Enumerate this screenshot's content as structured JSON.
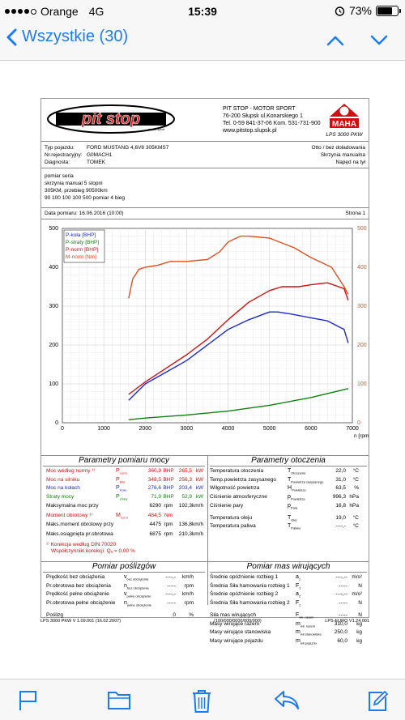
{
  "status": {
    "carrier": "Orange",
    "network": "4G",
    "time": "15:39",
    "battery": "73%",
    "battery_level": 0.73
  },
  "nav": {
    "back_label": "Wszystkie (30)"
  },
  "header": {
    "logo_text": "pit stop",
    "logo_sub": "motor sport",
    "company": [
      "PIT STOP - MOTOR SPORT",
      "76-200 Słupsk ul.Konarskiego 1",
      "Tel. 0-59 841-37-06 Kom. 531-731-900",
      "www.pitstop.slupsk.pl"
    ],
    "maha_text": "MAHA",
    "lps": "LPS 3000 PKW"
  },
  "vehicle": {
    "labels": [
      "Typ pojazdu:",
      "Nr.rejestracyjny:",
      "Diagnosta:"
    ],
    "values": [
      "FORD MUSTANG 4,6V8 305KMS7",
      "G0MACH1",
      "TOMEK"
    ],
    "right": [
      "Otto / bez doładowania",
      "Skrzynia manualna",
      "Napęd na tył"
    ]
  },
  "description": [
    "pomiar seria",
    "skrzynia manual 5 stopni",
    "305KM, przebieg 90500km",
    "90 100 100 100 500 pomiar 4 bieg"
  ],
  "date": {
    "label": "Data pomiaru: 16.06.2016 (10:00)",
    "page": "Strona 1"
  },
  "chart_data": {
    "type": "line",
    "xlabel": "n [rpm]",
    "xlim": [
      0,
      7000
    ],
    "x_ticks": [
      0,
      1000,
      2000,
      3000,
      4000,
      5000,
      6000,
      7000
    ],
    "left_ticks": [
      0,
      100,
      200,
      300,
      400,
      500
    ],
    "right_ticks": [
      0,
      100,
      200,
      300,
      400,
      500
    ],
    "ylim": [
      0,
      500
    ],
    "grid": true,
    "legend_position": "top-left",
    "series": [
      {
        "name": "P-koła [BHP]",
        "color": "#1a2ad0",
        "x": [
          1600,
          2000,
          2500,
          3000,
          3500,
          4000,
          4500,
          5000,
          5200,
          5500,
          6000,
          6400,
          6800,
          6900
        ],
        "y": [
          58,
          100,
          130,
          160,
          200,
          240,
          265,
          285,
          285,
          280,
          270,
          262,
          240,
          205
        ]
      },
      {
        "name": "P-straty [BHP]",
        "color": "#128012",
        "x": [
          1600,
          2000,
          3000,
          4000,
          5000,
          6000,
          6900
        ],
        "y": [
          8,
          12,
          20,
          30,
          45,
          65,
          88
        ]
      },
      {
        "name": "P-norm [BHP]",
        "color": "#d01010",
        "x": [
          1600,
          2000,
          2500,
          3000,
          3500,
          4000,
          4500,
          5000,
          5300,
          5700,
          6000,
          6400,
          6800,
          6900
        ],
        "y": [
          73,
          105,
          140,
          175,
          215,
          265,
          310,
          340,
          350,
          350,
          355,
          360,
          345,
          315
        ]
      },
      {
        "name": "M-norm [Nm]",
        "color": "#e05020",
        "x": [
          1600,
          1700,
          1850,
          2000,
          2300,
          2600,
          3000,
          3500,
          3800,
          4000,
          4300,
          4500,
          5000,
          5600,
          6000,
          6500,
          6800,
          6900
        ],
        "y": [
          320,
          370,
          395,
          400,
          405,
          415,
          415,
          420,
          440,
          465,
          480,
          480,
          475,
          450,
          425,
          400,
          350,
          330
        ]
      }
    ]
  },
  "params": {
    "title": "Parametry pomiaru mocy",
    "rows": [
      {
        "label": "Moc według normy ¹⁾",
        "sym": "Pnorm",
        "v1": "360,9",
        "u1": "BHP",
        "v2": "265,5",
        "u2": "kW",
        "color": "red"
      },
      {
        "label": "Moc na silniku",
        "sym": "PMot",
        "v1": "348,5",
        "u1": "BHP",
        "v2": "256,3",
        "u2": "kW",
        "color": "red"
      },
      {
        "label": "Moc na kołach",
        "sym": "PKoła",
        "v1": "276,6",
        "u1": "BHP",
        "v2": "203,4",
        "u2": "kW",
        "color": "blue"
      },
      {
        "label": "Straty mocy",
        "sym": "Pstraty",
        "v1": "71,9",
        "u1": "BHP",
        "v2": "52,9",
        "u2": "kW",
        "color": "green"
      },
      {
        "label": "Maksymalna moc przy",
        "sym": "",
        "v1": "6290",
        "u1": "rpm",
        "v2": "192,3",
        "u2": "km/h",
        "color": ""
      },
      {
        "label": "Moment obrotowy ¹⁾",
        "sym": "Mnorm",
        "v1": "484,5",
        "u1": "Nm",
        "v2": "",
        "u2": "",
        "color": "red"
      },
      {
        "label": "Maks.moment obrotowy przy",
        "sym": "",
        "v1": "4475",
        "u1": "rpm",
        "v2": "136,8",
        "u2": "km/h",
        "color": ""
      },
      {
        "label": "Maks.osiągnięta pr.obrotowa",
        "sym": "",
        "v1": "6875",
        "u1": "rpm",
        "v2": "210,3",
        "u2": "km/h",
        "color": ""
      }
    ],
    "note1": "¹⁾ Korekcja według DIN 70020",
    "note2": "Współczynniki korekcji: Qₐ =        0,00 %"
  },
  "env": {
    "title": "Parametry otoczenia",
    "rows": [
      {
        "label": "Temperatura otoczenia",
        "sym": "TOtoczenie",
        "v": "22,0",
        "u": "°C"
      },
      {
        "label": "Temp.powietrza zasysanego",
        "sym": "TPowietrza zasysanego",
        "v": "31,0",
        "u": "°C"
      },
      {
        "label": "Wilgotność powietrza",
        "sym": "HPowietrza",
        "v": "63,5",
        "u": "%"
      },
      {
        "label": "Ciśnienie atmosferyczne",
        "sym": "pPowietrza",
        "v": "996,3",
        "u": "hPa"
      },
      {
        "label": "Ciśnienie pary",
        "sym": "pPara",
        "v": "16,8",
        "u": "hPa"
      },
      {
        "label": "Temperatura oleju",
        "sym": "TOlej",
        "v": "19,0",
        "u": "°C"
      },
      {
        "label": "Temperatura paliwa",
        "sym": "TPaliwo",
        "v": "----,-",
        "u": "°C"
      }
    ]
  },
  "slip": {
    "title": "Pomiar poślizgów",
    "rows": [
      {
        "label": "Prędkość bez obciążenia",
        "sym": "vbez obciążenia",
        "v": "----,-",
        "u": "km/h"
      },
      {
        "label": "Pr.obrotowa bez obciążenia",
        "sym": "nbez obciążenia",
        "v": "-----",
        "u": "rpm"
      },
      {
        "label": "Prędkość pełne obciążenie",
        "sym": "vpełne obciążenie",
        "v": "----,-",
        "u": "km/h"
      },
      {
        "label": "Pr.obrotowa pełne obciążenie",
        "sym": "npełne obciążenie",
        "v": "-----",
        "u": "rpm"
      },
      {
        "label": "Poślizg",
        "sym": "",
        "v": "0",
        "u": "%"
      }
    ]
  },
  "mass": {
    "title": "Pomiar mas wirujących",
    "rows": [
      {
        "label": "Średnie opóźnienie rozbieg 1",
        "sym": "a1",
        "v": "----,--",
        "u": "m/s²"
      },
      {
        "label": "Średnia Siła hamowania rozbieg 1",
        "sym": "F1",
        "v": "-----",
        "u": "N"
      },
      {
        "label": "Średnie opóźnienie rozbieg 2",
        "sym": "a2",
        "v": "----,--",
        "u": "m/s²"
      },
      {
        "label": "Średnia Siła hamowania rozbieg 2",
        "sym": "F2",
        "v": "-----",
        "u": "N"
      },
      {
        "label": "Siła mas wirujących",
        "sym": "Fwir. razem",
        "v": "-----",
        "u": "N"
      },
      {
        "label": "Masy wirujące razem",
        "sym": "mwir. razem",
        "v": "310,0",
        "u": "kg"
      },
      {
        "label": "Masy wirujące stanowiska",
        "sym": "mwir.stanowiska",
        "v": "250,0",
        "u": "kg"
      },
      {
        "label": "Masy wirujące pojazdu",
        "sym": "mwir.pojazdu",
        "v": "60,0",
        "u": "kg"
      }
    ]
  },
  "footer": {
    "left": "LPS 3000 PKW V 1.09.001 (16.02.2007)",
    "center": "(100/000/0000/000/000)",
    "right": "LPS-EURO V1.24.001"
  }
}
